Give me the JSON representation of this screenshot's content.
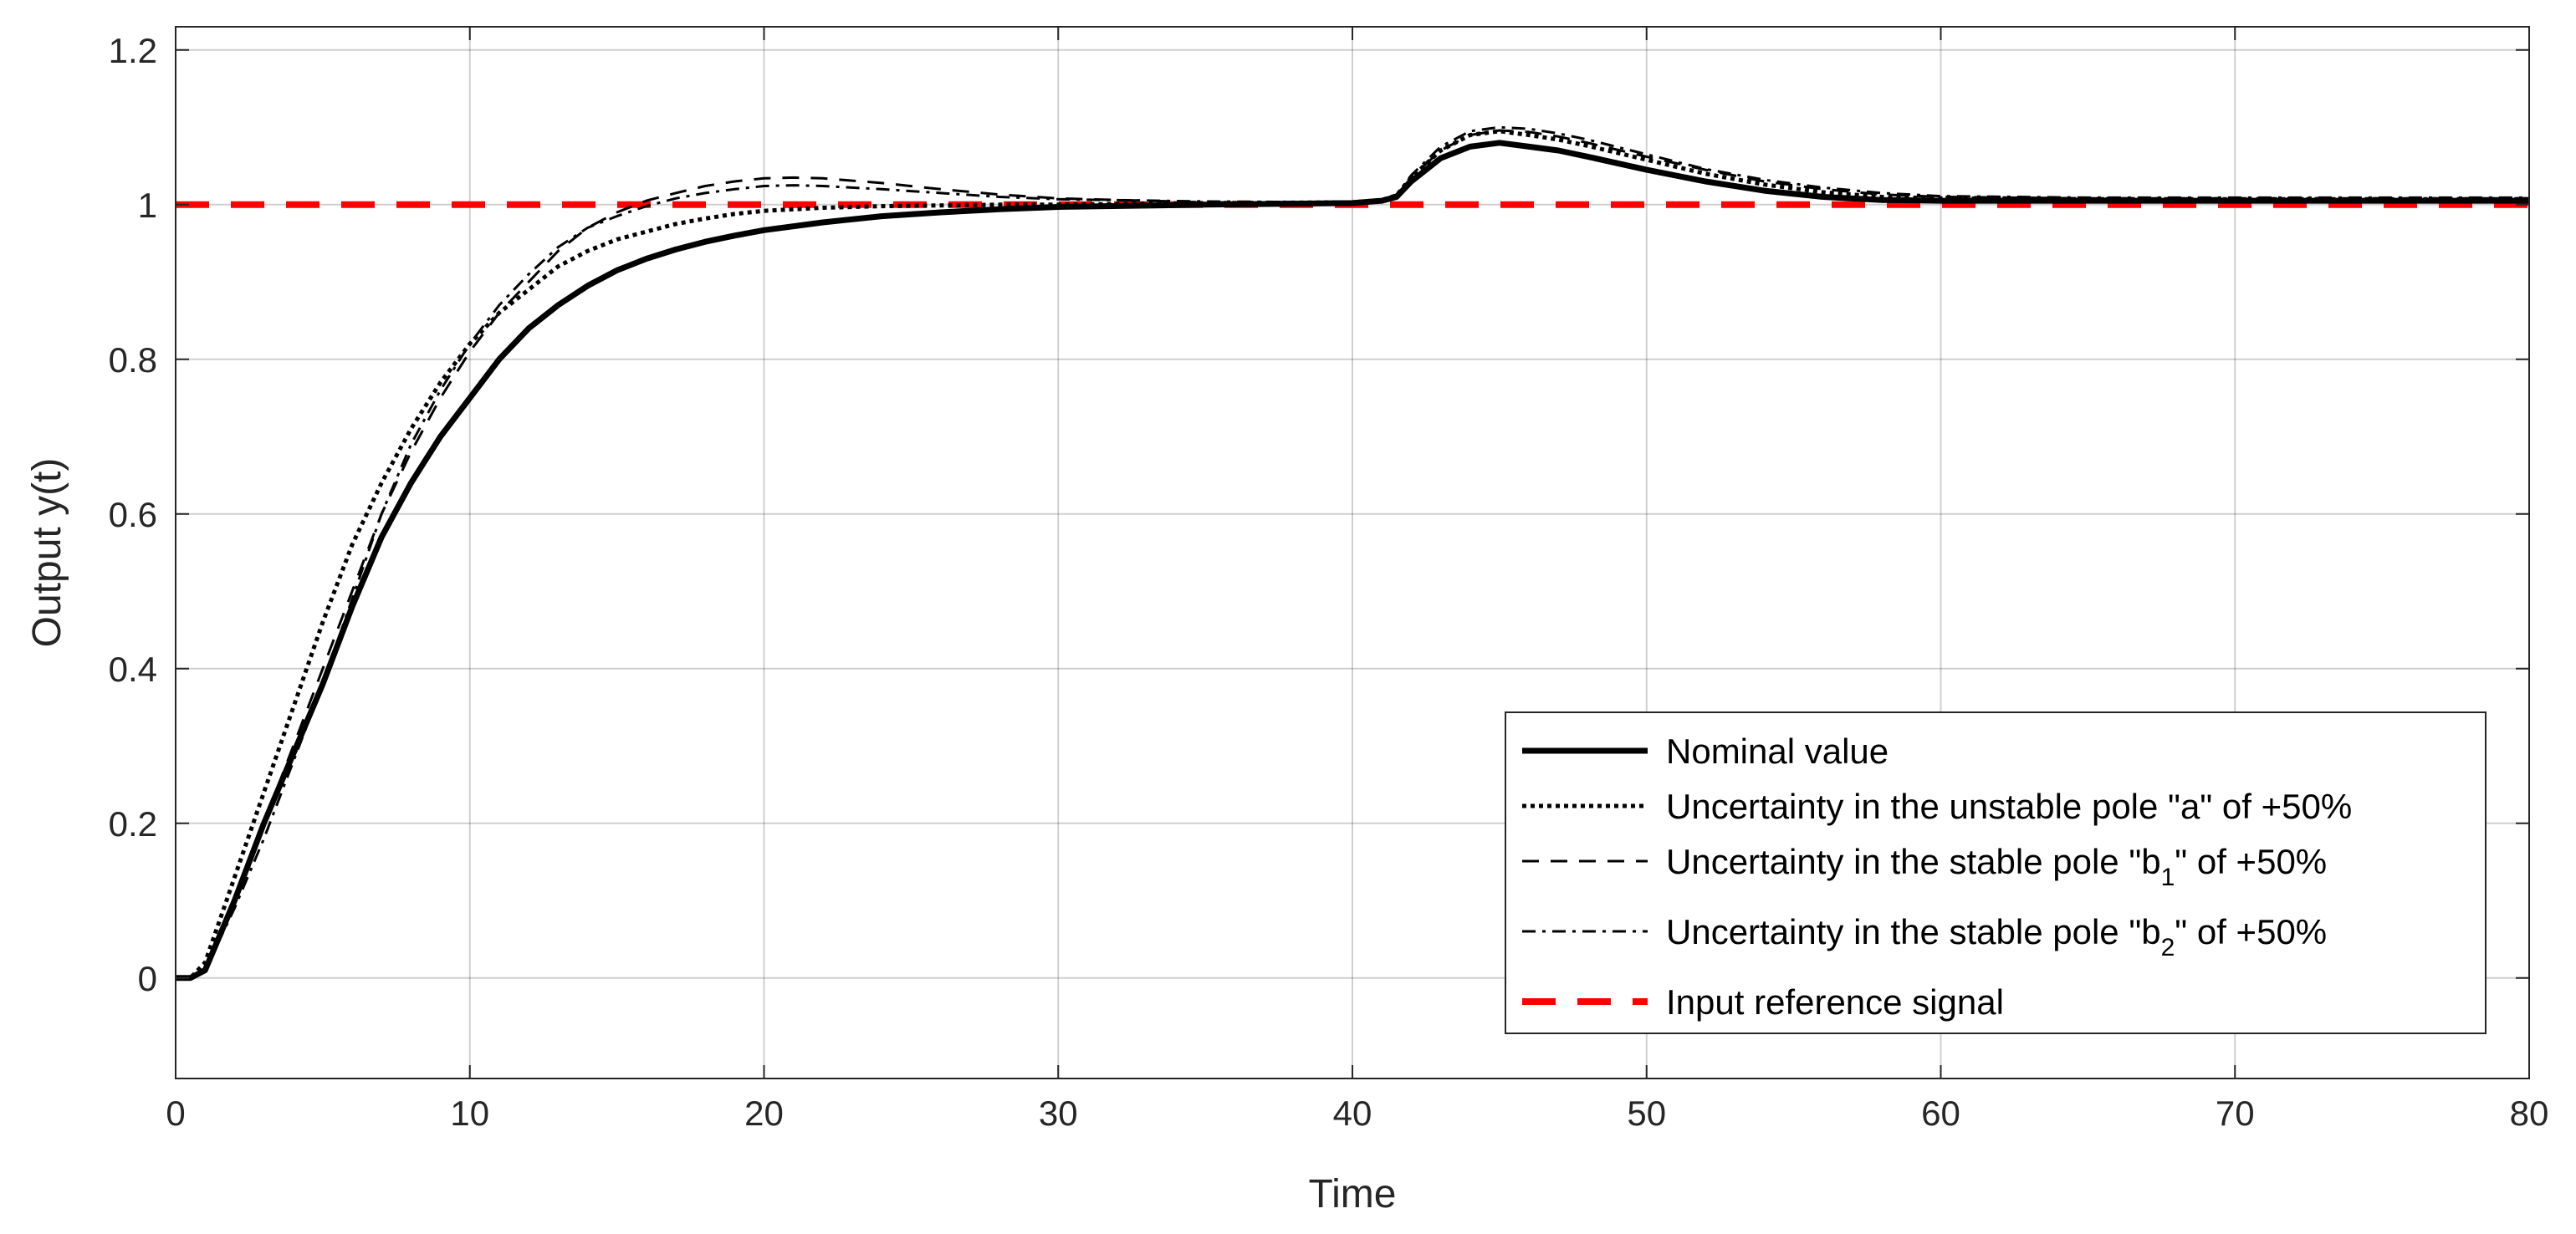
{
  "chart_data": {
    "type": "line",
    "title": "",
    "xlabel": "Time",
    "ylabel": "Output y(t)",
    "xlim": [
      0,
      80
    ],
    "ylim": [
      -0.13,
      1.23
    ],
    "xticks": [
      0,
      10,
      20,
      30,
      40,
      50,
      60,
      70,
      80
    ],
    "xtick_labels": [
      "0",
      "10",
      "20",
      "30",
      "40",
      "50",
      "60",
      "70",
      "80"
    ],
    "yticks": [
      0,
      0.2,
      0.4,
      0.6,
      0.8,
      1,
      1.2
    ],
    "ytick_labels": [
      "0",
      "0.2",
      "0.4",
      "0.6",
      "0.8",
      "1",
      "1.2"
    ],
    "grid": true,
    "legend_position": "bottom-right",
    "series": [
      {
        "name": "Nominal value",
        "legend_parts": [
          "Nominal value"
        ],
        "color": "#000000",
        "style": "solid-thick",
        "x": [
          0,
          0.5,
          1,
          2,
          3,
          4,
          5,
          6,
          7,
          8,
          9,
          10,
          11,
          12,
          13,
          14,
          15,
          16,
          17,
          18,
          19,
          20,
          22,
          24,
          26,
          28,
          30,
          35,
          40,
          41,
          41.5,
          42,
          43,
          44,
          45,
          46,
          47,
          48,
          50,
          52,
          54,
          56,
          58,
          60,
          65,
          70,
          75,
          80
        ],
        "y": [
          0,
          0,
          0.01,
          0.1,
          0.2,
          0.29,
          0.38,
          0.48,
          0.57,
          0.64,
          0.7,
          0.75,
          0.8,
          0.84,
          0.87,
          0.895,
          0.915,
          0.93,
          0.942,
          0.952,
          0.96,
          0.967,
          0.977,
          0.985,
          0.99,
          0.994,
          0.997,
          1.0,
          1.002,
          1.005,
          1.01,
          1.03,
          1.06,
          1.075,
          1.08,
          1.075,
          1.07,
          1.062,
          1.045,
          1.03,
          1.018,
          1.01,
          1.006,
          1.005,
          1.005,
          1.005,
          1.005,
          1.005
        ]
      },
      {
        "name": "Uncertainty in the unstable pole \"a\" of +50%",
        "legend_parts": [
          "Uncertainty in the unstable pole \"a\" of +50%"
        ],
        "color": "#000000",
        "style": "dotted",
        "x": [
          0,
          0.5,
          1,
          2,
          3,
          4,
          5,
          6,
          7,
          8,
          9,
          10,
          11,
          12,
          13,
          14,
          15,
          16,
          17,
          18,
          19,
          20,
          22,
          24,
          26,
          28,
          30,
          35,
          40,
          41,
          41.5,
          42,
          43,
          44,
          45,
          46,
          47,
          48,
          50,
          52,
          54,
          56,
          58,
          60,
          65,
          70,
          75,
          80
        ],
        "y": [
          0,
          0,
          0.02,
          0.13,
          0.24,
          0.35,
          0.46,
          0.56,
          0.64,
          0.71,
          0.77,
          0.82,
          0.86,
          0.89,
          0.92,
          0.94,
          0.955,
          0.965,
          0.975,
          0.982,
          0.988,
          0.992,
          0.996,
          0.998,
          0.999,
          1.0,
          1.0,
          1.002,
          1.003,
          1.006,
          1.012,
          1.035,
          1.07,
          1.09,
          1.095,
          1.09,
          1.084,
          1.076,
          1.058,
          1.04,
          1.026,
          1.016,
          1.01,
          1.008,
          1.007,
          1.007,
          1.007,
          1.007
        ]
      },
      {
        "name": "Uncertainty in the stable pole \"b1\" of +50%",
        "legend_parts": [
          "Uncertainty in the stable pole \"b",
          "1",
          "\" of +50%"
        ],
        "color": "#000000",
        "style": "dashed",
        "x": [
          0,
          0.5,
          1,
          2,
          3,
          4,
          5,
          6,
          7,
          8,
          9,
          10,
          11,
          12,
          13,
          14,
          15,
          16,
          17,
          18,
          19,
          20,
          21,
          22,
          24,
          26,
          28,
          30,
          35,
          40,
          41,
          41.5,
          42,
          43,
          44,
          45,
          46,
          47,
          48,
          50,
          52,
          54,
          56,
          58,
          60,
          65,
          70,
          75,
          80
        ],
        "y": [
          0,
          0,
          0.01,
          0.1,
          0.2,
          0.3,
          0.4,
          0.5,
          0.6,
          0.68,
          0.75,
          0.81,
          0.86,
          0.9,
          0.94,
          0.97,
          0.99,
          1.005,
          1.015,
          1.024,
          1.03,
          1.034,
          1.035,
          1.034,
          1.028,
          1.02,
          1.013,
          1.008,
          1.003,
          1.002,
          1.006,
          1.012,
          1.035,
          1.07,
          1.09,
          1.096,
          1.094,
          1.088,
          1.08,
          1.062,
          1.045,
          1.03,
          1.02,
          1.013,
          1.01,
          1.008,
          1.008,
          1.008,
          1.008
        ]
      },
      {
        "name": "Uncertainty in the stable pole \"b2\" of +50%",
        "legend_parts": [
          "Uncertainty in the stable pole \"b",
          "2",
          "\" of +50%"
        ],
        "color": "#000000",
        "style": "dashdot",
        "x": [
          0,
          0.5,
          1,
          2,
          3,
          4,
          5,
          6,
          7,
          8,
          9,
          10,
          11,
          12,
          13,
          14,
          15,
          16,
          17,
          18,
          19,
          20,
          21,
          22,
          24,
          26,
          28,
          30,
          35,
          40,
          41,
          41.5,
          42,
          43,
          44,
          45,
          46,
          47,
          48,
          50,
          52,
          54,
          56,
          58,
          60,
          65,
          70,
          75,
          80
        ],
        "y": [
          0,
          0,
          0.01,
          0.09,
          0.18,
          0.28,
          0.38,
          0.49,
          0.6,
          0.69,
          0.76,
          0.82,
          0.87,
          0.91,
          0.945,
          0.97,
          0.985,
          0.998,
          1.008,
          1.015,
          1.02,
          1.024,
          1.025,
          1.024,
          1.02,
          1.015,
          1.01,
          1.007,
          1.004,
          1.003,
          1.006,
          1.013,
          1.038,
          1.075,
          1.095,
          1.1,
          1.098,
          1.092,
          1.084,
          1.065,
          1.046,
          1.032,
          1.022,
          1.015,
          1.011,
          1.009,
          1.009,
          1.009,
          1.009
        ]
      },
      {
        "name": "Input reference signal",
        "legend_parts": [
          "Input reference signal"
        ],
        "color": "#ff0000",
        "style": "dashed-thick",
        "x": [
          0,
          80
        ],
        "y": [
          1,
          1
        ]
      }
    ]
  }
}
